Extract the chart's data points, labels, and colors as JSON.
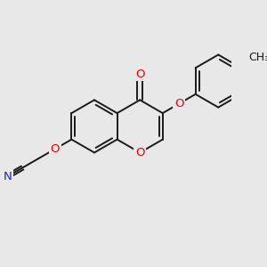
{
  "bg_color": "#e8e8e8",
  "bond_color": "#1a1a1a",
  "bond_width": 1.4,
  "atom_colors": {
    "O": "#ee0000",
    "N": "#2222cc",
    "C": "#1a1a1a"
  },
  "font_size": 9.5,
  "fig_size": [
    3.0,
    3.0
  ],
  "dpi": 100
}
